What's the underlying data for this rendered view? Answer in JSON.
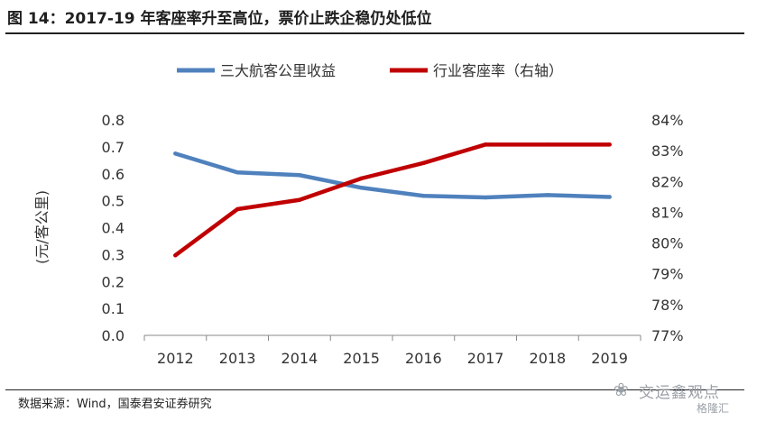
{
  "header": {
    "title": "图 14：2017-19 年客座率升至高位，票价止跌企稳仍处低位"
  },
  "footer": {
    "source": "数据来源：Wind，国泰君安证券研究",
    "watermark": "交运鑫观点",
    "watermark_sub": "格隆汇",
    "watermark_icon": "wechat-icon"
  },
  "chart_data": {
    "type": "line",
    "categories": [
      "2012",
      "2013",
      "2014",
      "2015",
      "2016",
      "2017",
      "2018",
      "2019"
    ],
    "ylabel": "(元/客公里)",
    "ylim": [
      0,
      0.8
    ],
    "yticks": [
      "0.0",
      "0.1",
      "0.2",
      "0.3",
      "0.4",
      "0.5",
      "0.6",
      "0.7",
      "0.8"
    ],
    "y2lim": [
      77,
      84
    ],
    "y2ticks": [
      "77%",
      "78%",
      "79%",
      "80%",
      "81%",
      "82%",
      "83%",
      "84%"
    ],
    "legend_position": "top",
    "series": [
      {
        "name": "三大航客公里收益",
        "axis": "left",
        "color": "#4f81bd",
        "values": [
          0.675,
          0.605,
          0.595,
          0.548,
          0.518,
          0.512,
          0.521,
          0.514
        ]
      },
      {
        "name": "行业客座率（右轴）",
        "axis": "right",
        "color": "#c00000",
        "values": [
          79.6,
          81.1,
          81.4,
          82.1,
          82.6,
          83.2,
          83.2,
          83.2
        ]
      }
    ]
  }
}
